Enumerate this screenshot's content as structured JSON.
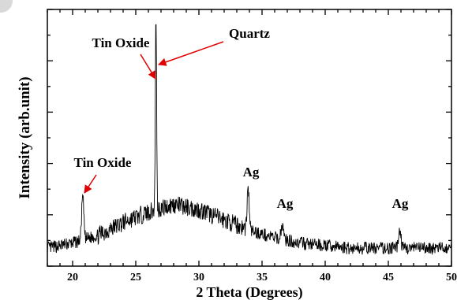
{
  "chart_data": {
    "type": "line",
    "title": "",
    "xlabel": "2 Theta (Degrees)",
    "ylabel": "Intensity (arb.unit)",
    "xlim": [
      18,
      50
    ],
    "ylim": [
      0,
      100
    ],
    "x_ticks": [
      "20",
      "25",
      "30",
      "35",
      "40",
      "45",
      "50"
    ],
    "y_ticks_labeled": false,
    "grid": false,
    "legend": "none",
    "line_color": "#000000",
    "annotations": [
      {
        "text": "Tin Oxide",
        "target_x": 26.6,
        "arrow": true,
        "arrow_color": "#e00000"
      },
      {
        "text": "Quartz",
        "target_x": 26.65,
        "arrow": true,
        "arrow_color": "#e00000"
      },
      {
        "text": "Tin Oxide",
        "target_x": 20.8,
        "arrow": true,
        "arrow_color": "#e00000"
      },
      {
        "text": "Ag",
        "target_x": 33.9,
        "arrow": false
      },
      {
        "text": "Ag",
        "target_x": 36.6,
        "arrow": false
      },
      {
        "text": "Ag",
        "target_x": 45.9,
        "arrow": false
      }
    ],
    "peaks": [
      {
        "x": 20.8,
        "y": 27
      },
      {
        "x": 26.6,
        "y": 98
      },
      {
        "x": 33.9,
        "y": 30
      },
      {
        "x": 36.6,
        "y": 16
      },
      {
        "x": 45.9,
        "y": 14
      }
    ],
    "baseline": [
      {
        "x": 18,
        "y": 7
      },
      {
        "x": 20,
        "y": 9
      },
      {
        "x": 22,
        "y": 12
      },
      {
        "x": 24,
        "y": 17
      },
      {
        "x": 26,
        "y": 21
      },
      {
        "x": 28,
        "y": 24
      },
      {
        "x": 30,
        "y": 22
      },
      {
        "x": 32,
        "y": 18
      },
      {
        "x": 34,
        "y": 14
      },
      {
        "x": 36,
        "y": 11
      },
      {
        "x": 38,
        "y": 9
      },
      {
        "x": 40,
        "y": 8
      },
      {
        "x": 42,
        "y": 7
      },
      {
        "x": 44,
        "y": 7
      },
      {
        "x": 46,
        "y": 7
      },
      {
        "x": 48,
        "y": 7
      },
      {
        "x": 50,
        "y": 7
      }
    ]
  }
}
